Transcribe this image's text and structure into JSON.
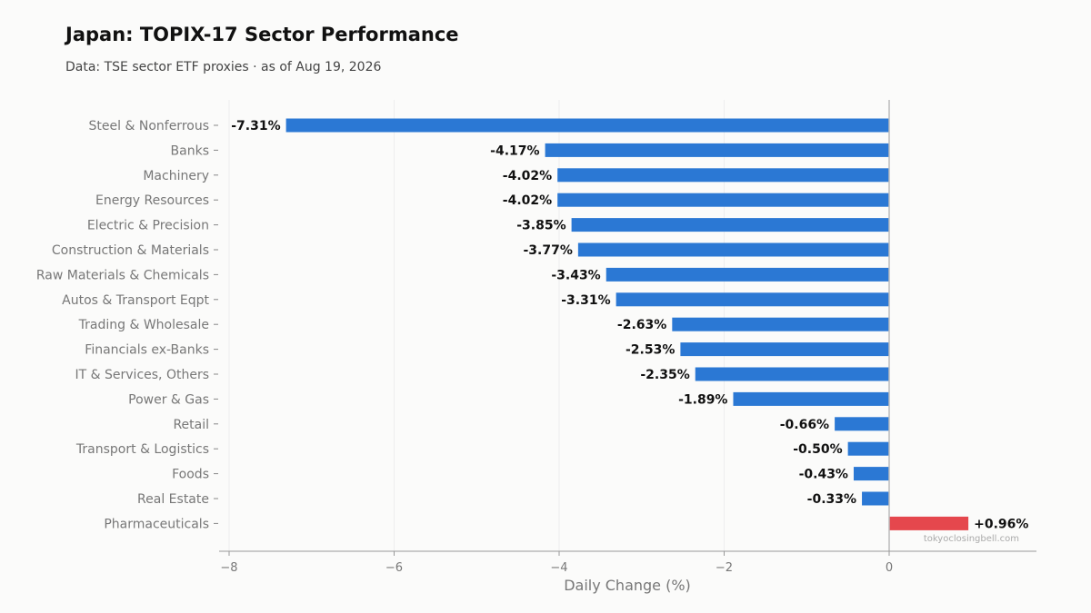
{
  "header": {
    "title": "Japan: TOPIX-17 Sector Performance",
    "subtitle": "Data: TSE sector ETF proxies · as of Aug 19, 2026"
  },
  "watermark": "tokyoclosingbell.com",
  "colors": {
    "negative": "#2b78d4",
    "positive": "#e5474d",
    "background": "#fbfbfa"
  },
  "chart_data": {
    "type": "bar",
    "orientation": "horizontal",
    "title": "Japan: TOPIX-17 Sector Performance",
    "subtitle": "Data: TSE sector ETF proxies · as of Aug 19, 2026",
    "xlabel": "Daily Change (%)",
    "ylabel": "",
    "xlim": [
      -8.1,
      1.8
    ],
    "xticks": [
      -8,
      -6,
      -4,
      -2,
      0
    ],
    "xtick_labels": [
      "−8",
      "−6",
      "−4",
      "−2",
      "0"
    ],
    "grid": "vertical",
    "categories": [
      "Steel & Nonferrous",
      "Banks",
      "Machinery",
      "Energy Resources",
      "Electric & Precision",
      "Construction & Materials",
      "Raw Materials & Chemicals",
      "Autos & Transport Eqpt",
      "Trading & Wholesale",
      "Financials ex-Banks",
      "IT & Services, Others",
      "Power & Gas",
      "Retail",
      "Transport & Logistics",
      "Foods",
      "Real Estate",
      "Pharmaceuticals"
    ],
    "values": [
      -7.31,
      -4.17,
      -4.02,
      -4.02,
      -3.85,
      -3.77,
      -3.43,
      -3.31,
      -2.63,
      -2.53,
      -2.35,
      -1.89,
      -0.66,
      -0.5,
      -0.43,
      -0.33,
      0.96
    ],
    "data_labels": [
      "-7.31%",
      "-4.17%",
      "-4.02%",
      "-4.02%",
      "-3.85%",
      "-3.77%",
      "-3.43%",
      "-3.31%",
      "-2.63%",
      "-2.53%",
      "-2.35%",
      "-1.89%",
      "-0.66%",
      "-0.50%",
      "-0.43%",
      "-0.33%",
      "+0.96%"
    ]
  }
}
